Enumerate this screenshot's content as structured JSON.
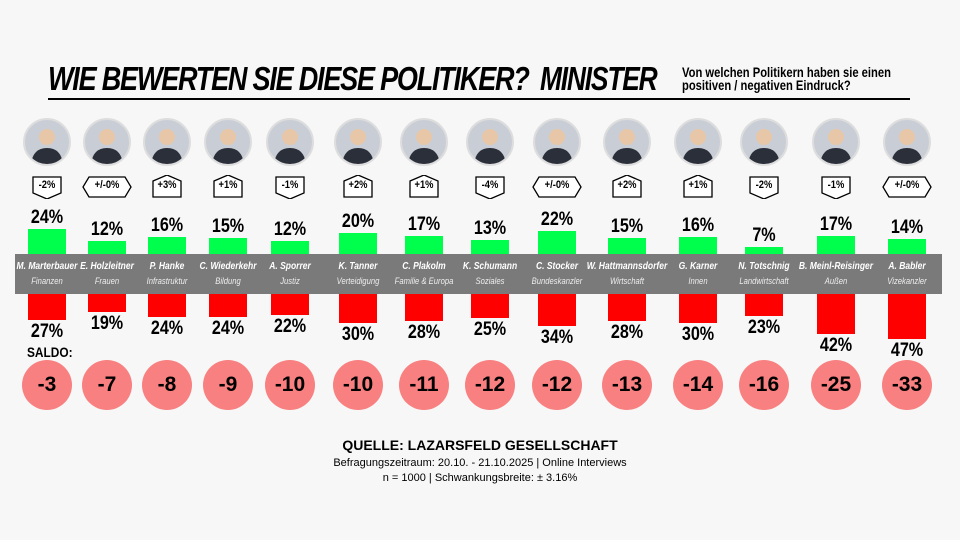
{
  "header": {
    "title": "WIE BEWERTEN SIE DIESE POLITIKER?",
    "subtitle": "MINISTER",
    "question_line1": "Von welchen Politikern haben sie einen",
    "question_line2": "positiven / negativen Eindruck?"
  },
  "chart_data": {
    "type": "bar",
    "colors": {
      "positive": "#00ff4c",
      "negative": "#ff0000",
      "saldo": "#f88080",
      "band": "#7a7a7a"
    },
    "categories": [
      "M. Marterbauer",
      "E. Holzleitner",
      "P. Hanke",
      "C. Wiederkehr",
      "A. Sporrer",
      "K. Tanner",
      "C. Plakolm",
      "K. Schumann",
      "C. Stocker",
      "W. Hattmannsdorfer",
      "G. Karner",
      "N. Totschnig",
      "B. Meinl-Reisinger",
      "A. Babler"
    ],
    "roles": [
      "Finanzen",
      "Frauen",
      "Infrastruktur",
      "Bildung",
      "Justiz",
      "Verteidigung",
      "Familie & Europa",
      "Soziales",
      "Bundeskanzler",
      "Wirtschaft",
      "Innen",
      "Landwirtschaft",
      "Außen",
      "Vizekanzler"
    ],
    "changes": [
      "-2%",
      "+/-0%",
      "+3%",
      "+1%",
      "-1%",
      "+2%",
      "+1%",
      "-4%",
      "+/-0%",
      "+2%",
      "+1%",
      "-2%",
      "-1%",
      "+/-0%"
    ],
    "series": [
      {
        "key": "positive",
        "values": [
          24,
          12,
          16,
          15,
          12,
          20,
          17,
          13,
          22,
          15,
          16,
          7,
          17,
          14
        ]
      },
      {
        "key": "negative",
        "values": [
          27,
          19,
          24,
          24,
          22,
          30,
          28,
          25,
          34,
          28,
          30,
          23,
          42,
          47
        ]
      }
    ],
    "saldo_label": "SALDO:",
    "saldo": [
      -3,
      -7,
      -8,
      -9,
      -10,
      -10,
      -11,
      -12,
      -12,
      -13,
      -14,
      -16,
      -25,
      -33
    ]
  },
  "source": {
    "line1": "QUELLE:  LAZARSFELD GESELLSCHAFT",
    "line2": "Befragungszeitraum: 20.10. - 21.10.2025  | Online Interviews",
    "line3": "n = 1000 |  Schwankungsbreite: ± 3.16%"
  }
}
